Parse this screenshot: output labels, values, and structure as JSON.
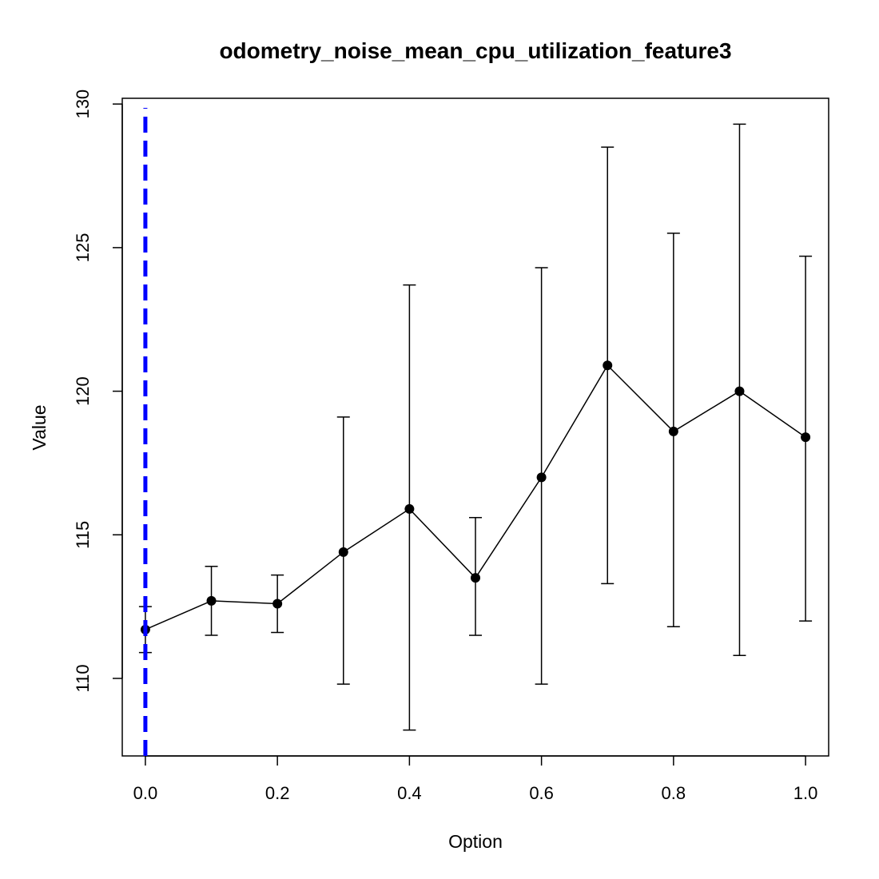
{
  "chart_data": {
    "type": "line",
    "title": "odometry_noise_mean_cpu_utilization_feature3",
    "xlabel": "Option",
    "ylabel": "Value",
    "xlim": [
      -0.035,
      1.035
    ],
    "ylim": [
      107.3,
      130.2
    ],
    "x_ticks": [
      0.0,
      0.2,
      0.4,
      0.6,
      0.8,
      1.0
    ],
    "x_tick_labels": [
      "0.0",
      "0.2",
      "0.4",
      "0.6",
      "0.8",
      "1.0"
    ],
    "y_ticks": [
      110,
      115,
      120,
      125,
      130
    ],
    "y_tick_labels": [
      "110",
      "115",
      "120",
      "125",
      "130"
    ],
    "grid": false,
    "legend": "none",
    "series": [
      {
        "x": [
          0.0,
          0.1,
          0.2,
          0.3,
          0.4,
          0.5,
          0.6,
          0.7,
          0.8,
          0.9,
          1.0
        ],
        "y": [
          111.7,
          112.7,
          112.6,
          114.4,
          115.9,
          113.5,
          117.0,
          120.9,
          118.6,
          120.0,
          118.4
        ],
        "lower": [
          110.9,
          111.5,
          111.6,
          109.8,
          108.2,
          111.5,
          109.8,
          113.3,
          111.8,
          110.8,
          112.0
        ],
        "upper": [
          112.5,
          113.9,
          113.6,
          119.1,
          123.7,
          115.6,
          124.3,
          128.5,
          125.5,
          129.3,
          124.7
        ],
        "color": "#000000"
      }
    ],
    "reference_line": {
      "x": 0.0,
      "style": "dashed",
      "color": "#0000ff"
    }
  }
}
